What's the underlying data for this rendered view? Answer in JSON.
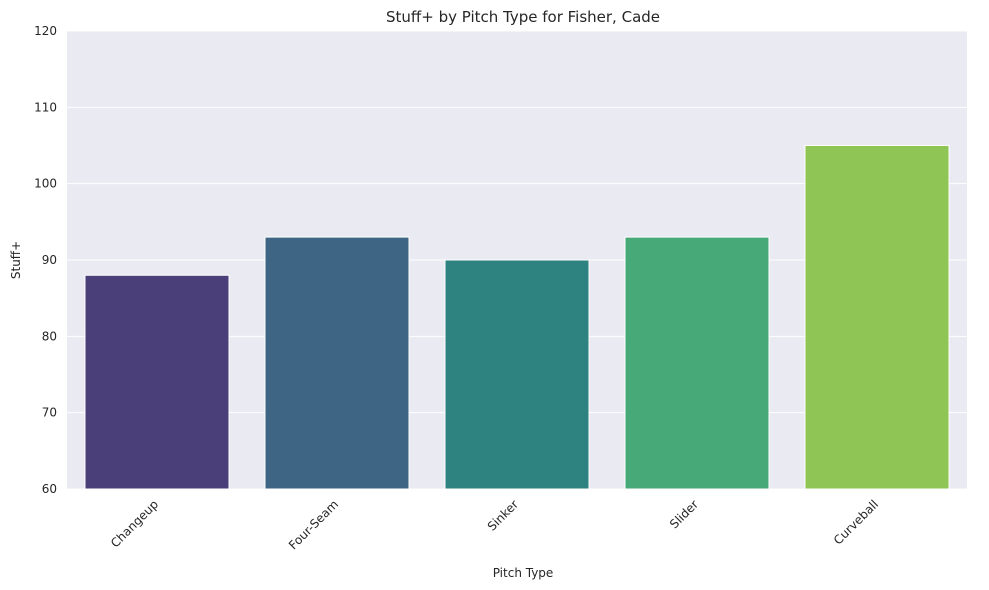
{
  "chart_data": {
    "type": "bar",
    "title": "Stuff+ by Pitch Type for Fisher, Cade",
    "xlabel": "Pitch Type",
    "ylabel": "Stuff+",
    "categories": [
      "Changeup",
      "Four-Seam",
      "Sinker",
      "Slider",
      "Curveball"
    ],
    "values": [
      88,
      93,
      90,
      93,
      105
    ],
    "colors": [
      "#4a3f79",
      "#3e6584",
      "#2e8380",
      "#48a978",
      "#8ec554"
    ],
    "ylim": [
      60,
      120
    ],
    "yticks": [
      60,
      70,
      80,
      90,
      100,
      110,
      120
    ],
    "grid": true,
    "legend": "none",
    "background": "#eaeaf2"
  }
}
